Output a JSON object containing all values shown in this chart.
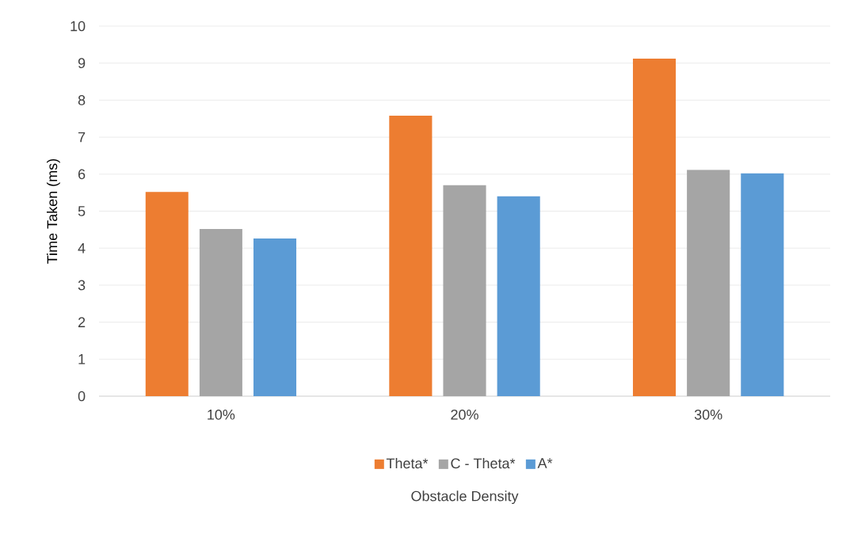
{
  "chart_data": {
    "type": "bar",
    "xlabel": "Obstacle Density",
    "ylabel": "Time Taken (ms)",
    "categories": [
      "10%",
      "20%",
      "30%"
    ],
    "series": [
      {
        "name": "Theta*",
        "color": "#ed7d31",
        "values": [
          5.52,
          7.58,
          9.12
        ]
      },
      {
        "name": "C - Theta*",
        "color": "#a5a5a5",
        "values": [
          4.52,
          5.7,
          6.12
        ]
      },
      {
        "name": "A*",
        "color": "#5b9bd5",
        "values": [
          4.26,
          5.4,
          6.02
        ]
      }
    ],
    "ylim": [
      0,
      10
    ],
    "yticks": [
      0,
      1,
      2,
      3,
      4,
      5,
      6,
      7,
      8,
      9,
      10
    ],
    "grid": "y",
    "legend": "bottom"
  }
}
